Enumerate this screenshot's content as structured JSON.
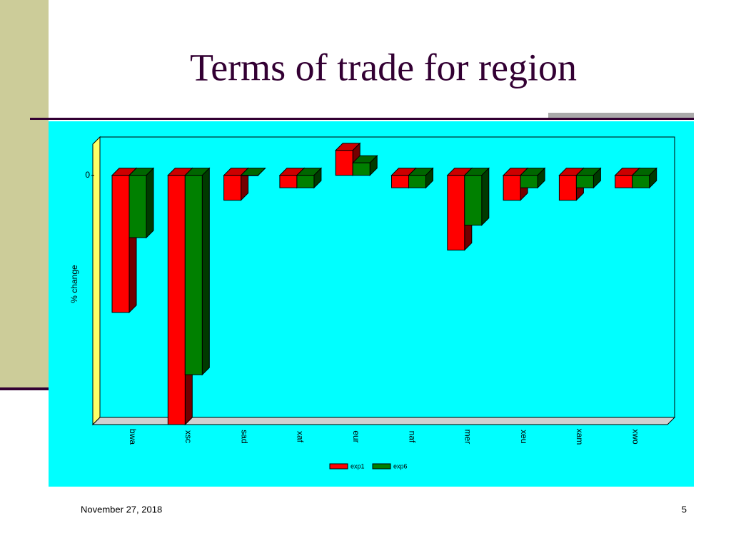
{
  "chart_data": {
    "type": "bar3d",
    "title": "Terms of trade for region",
    "ylabel": "% change",
    "categories": [
      "bwa",
      "xsc",
      "sad",
      "xaf",
      "eur",
      "naf",
      "mer",
      "xeu",
      "xam",
      "xwo"
    ],
    "series": [
      {
        "name": "exp1",
        "color": "#ff0000",
        "values": [
          -5.5,
          -10,
          -1.0,
          -0.5,
          1.0,
          -0.5,
          -3.0,
          -1.0,
          -1.0,
          -0.5
        ]
      },
      {
        "name": "exp6",
        "color": "#008000",
        "values": [
          -2.5,
          -8.0,
          0,
          -0.5,
          0.5,
          -0.5,
          -2.0,
          -0.5,
          -0.5,
          -0.5
        ]
      }
    ],
    "ylim": [
      -10,
      1.25
    ],
    "yticks": [
      0
    ],
    "legend": "bottom"
  },
  "footer": {
    "date": "November 27, 2018",
    "page": "5"
  }
}
